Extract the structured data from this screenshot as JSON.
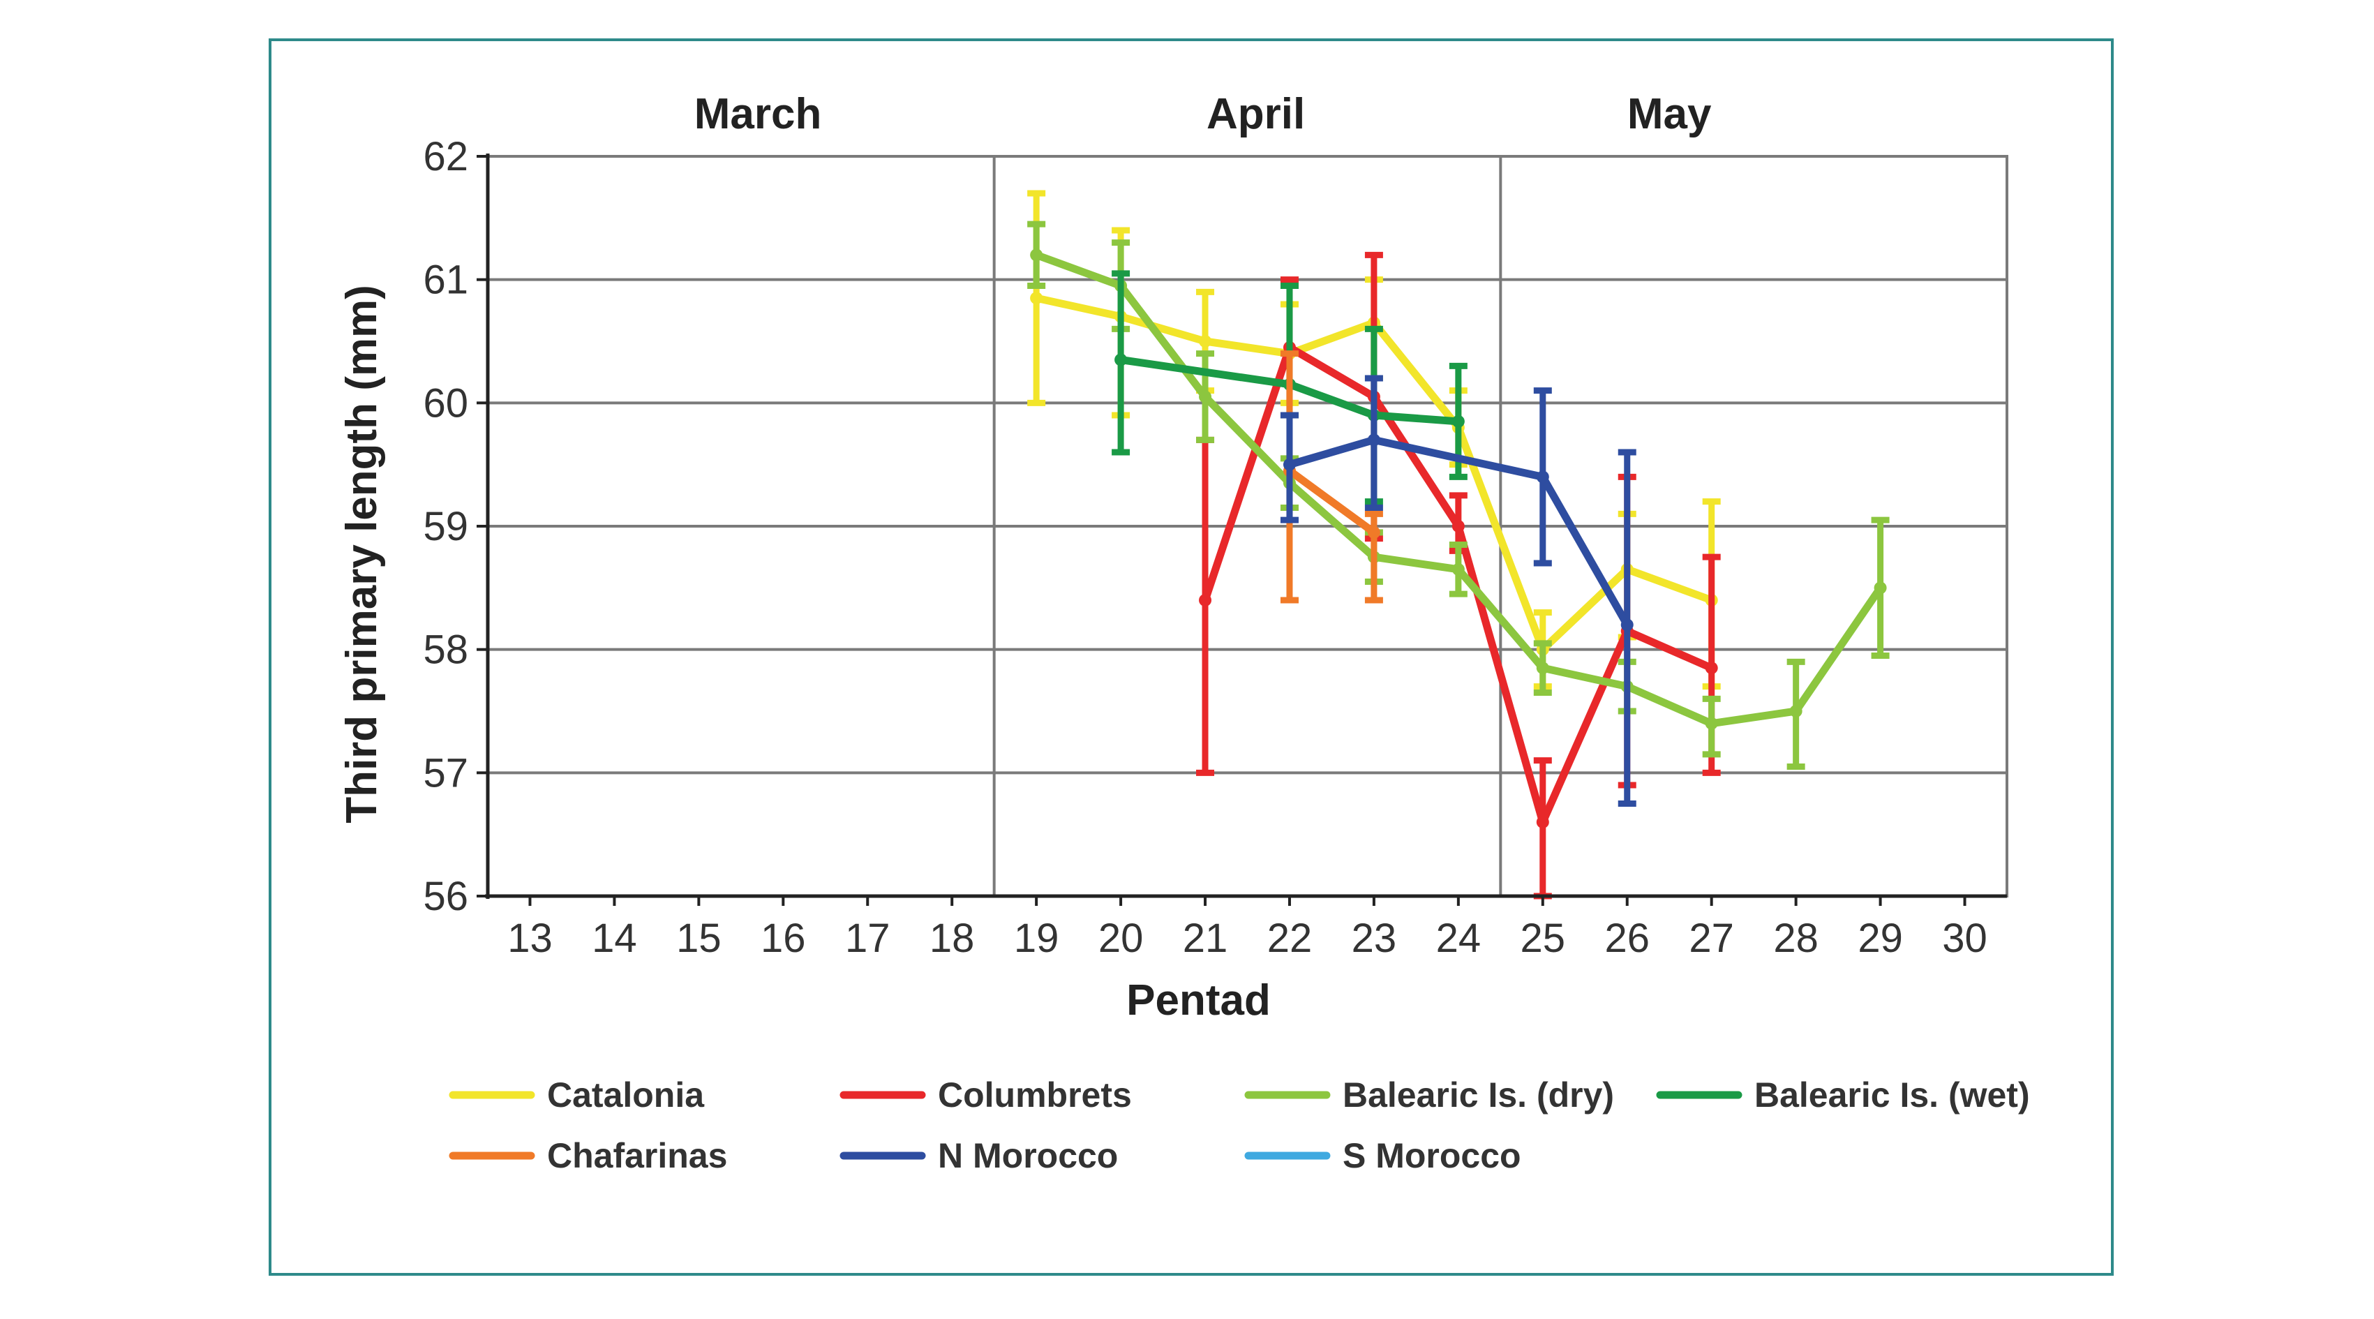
{
  "chart_data": {
    "type": "line",
    "xlabel": "Pentad",
    "ylabel": "Third primary length (mm)",
    "ylim": [
      56,
      62
    ],
    "xlim": [
      12.5,
      30.5
    ],
    "x_ticks": [
      13,
      14,
      15,
      16,
      17,
      18,
      19,
      20,
      21,
      22,
      23,
      24,
      25,
      26,
      27,
      28,
      29,
      30
    ],
    "y_ticks": [
      56,
      57,
      58,
      59,
      60,
      61,
      62
    ],
    "grid": true,
    "legend_position": "bottom",
    "months": [
      {
        "label": "March",
        "center": 15.7
      },
      {
        "label": "April",
        "center": 21.6
      },
      {
        "label": "May",
        "center": 26.5
      }
    ],
    "month_dividers": [
      18.5,
      24.5
    ],
    "series": [
      {
        "name": "Catalonia",
        "color": "#f2e52a",
        "points": [
          {
            "x": 19,
            "y": 60.85,
            "lo": 60.0,
            "hi": 61.7
          },
          {
            "x": 20,
            "y": 60.7,
            "lo": 59.9,
            "hi": 61.4
          },
          {
            "x": 21,
            "y": 60.5,
            "lo": 60.1,
            "hi": 60.9
          },
          {
            "x": 22,
            "y": 60.4,
            "lo": 60.0,
            "hi": 60.8
          },
          {
            "x": 23,
            "y": 60.65,
            "lo": 60.2,
            "hi": 61.0
          },
          {
            "x": 24,
            "y": 59.8,
            "lo": 59.5,
            "hi": 60.1
          },
          {
            "x": 25,
            "y": 58.0,
            "lo": 57.7,
            "hi": 58.3
          },
          {
            "x": 26,
            "y": 58.65,
            "lo": 58.1,
            "hi": 59.1
          },
          {
            "x": 27,
            "y": 58.4,
            "lo": 57.7,
            "hi": 59.2
          }
        ]
      },
      {
        "name": "Columbrets",
        "color": "#e8282a",
        "points": [
          {
            "x": 21,
            "y": 58.4,
            "lo": 57.0,
            "hi": 59.7
          },
          {
            "x": 22,
            "y": 60.45,
            "lo": 59.9,
            "hi": 61.0
          },
          {
            "x": 23,
            "y": 60.05,
            "lo": 58.9,
            "hi": 61.2
          },
          {
            "x": 24,
            "y": 59.0,
            "lo": 58.8,
            "hi": 59.25
          },
          {
            "x": 25,
            "y": 56.6,
            "lo": 56.0,
            "hi": 57.1
          },
          {
            "x": 26,
            "y": 58.15,
            "lo": 56.9,
            "hi": 59.4
          },
          {
            "x": 27,
            "y": 57.85,
            "lo": 57.0,
            "hi": 58.75
          }
        ]
      },
      {
        "name": "Balearic Is. (dry)",
        "color": "#8cc63f",
        "points": [
          {
            "x": 19,
            "y": 61.2,
            "lo": 60.95,
            "hi": 61.45
          },
          {
            "x": 20,
            "y": 60.95,
            "lo": 60.6,
            "hi": 61.3
          },
          {
            "x": 21,
            "y": 60.05,
            "lo": 59.7,
            "hi": 60.4
          },
          {
            "x": 22,
            "y": 59.35,
            "lo": 59.15,
            "hi": 59.55
          },
          {
            "x": 23,
            "y": 58.75,
            "lo": 58.55,
            "hi": 58.95
          },
          {
            "x": 24,
            "y": 58.65,
            "lo": 58.45,
            "hi": 58.85
          },
          {
            "x": 25,
            "y": 57.85,
            "lo": 57.65,
            "hi": 58.05
          },
          {
            "x": 26,
            "y": 57.7,
            "lo": 57.5,
            "hi": 57.9
          },
          {
            "x": 27,
            "y": 57.4,
            "lo": 57.15,
            "hi": 57.6
          },
          {
            "x": 28,
            "y": 57.5,
            "lo": 57.05,
            "hi": 57.9
          },
          {
            "x": 29,
            "y": 58.5,
            "lo": 57.95,
            "hi": 59.05
          }
        ]
      },
      {
        "name": "Balearic Is. (wet)",
        "color": "#1a9a46",
        "points": [
          {
            "x": 20,
            "y": 60.35,
            "lo": 59.6,
            "hi": 61.05
          },
          {
            "x": 22,
            "y": 60.15,
            "lo": 59.9,
            "hi": 60.95
          },
          {
            "x": 23,
            "y": 59.9,
            "lo": 59.2,
            "hi": 60.6
          },
          {
            "x": 24,
            "y": 59.85,
            "lo": 59.4,
            "hi": 60.3
          }
        ]
      },
      {
        "name": "Chafarinas",
        "color": "#f07a28",
        "points": [
          {
            "x": 22,
            "y": 59.45,
            "lo": 58.4,
            "hi": 60.4
          },
          {
            "x": 23,
            "y": 58.95,
            "lo": 58.4,
            "hi": 59.1
          }
        ]
      },
      {
        "name": "N Morocco",
        "color": "#2e4da0",
        "points": [
          {
            "x": 22,
            "y": 59.5,
            "lo": 59.05,
            "hi": 59.9
          },
          {
            "x": 23,
            "y": 59.7,
            "lo": 59.15,
            "hi": 60.2
          },
          {
            "x": 25,
            "y": 59.4,
            "lo": 58.7,
            "hi": 60.1
          },
          {
            "x": 26,
            "y": 58.2,
            "lo": 56.75,
            "hi": 59.6
          }
        ]
      },
      {
        "name": "S Morocco",
        "color": "#3fa9e0",
        "points": []
      }
    ]
  }
}
